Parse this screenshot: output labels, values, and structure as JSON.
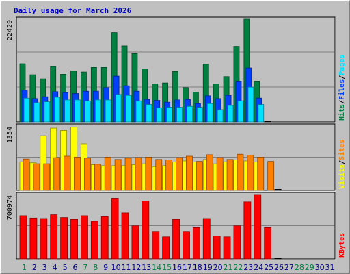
{
  "chart_data": {
    "type": "bar",
    "title": "Daily usage for March 2026",
    "days": [
      "1",
      "2",
      "3",
      "4",
      "5",
      "6",
      "7",
      "8",
      "9",
      "10",
      "11",
      "12",
      "13",
      "14",
      "15",
      "16",
      "17",
      "18",
      "19",
      "20",
      "21",
      "22",
      "23",
      "24",
      "25",
      "26",
      "27",
      "28",
      "29",
      "30",
      "31"
    ],
    "weekend_days": [
      "1",
      "7",
      "8",
      "14",
      "15",
      "21",
      "22",
      "28",
      "29"
    ],
    "colors": {
      "background": "#c0c0c0",
      "hits": "#008040",
      "files": "#0040ff",
      "pages": "#00e0ff",
      "visits": "#ffff00",
      "sites": "#ff8000",
      "kbytes": "#ff0000",
      "title": "#0000cc",
      "weekday_label": "#008040",
      "weekend_label": "#008040",
      "day_label": "#000080"
    },
    "panels": [
      {
        "id": "hits-panel",
        "ymax_label": "22429",
        "ymax": 22429,
        "legend": [
          {
            "text": "Hits",
            "color": "#008040"
          },
          {
            "text": "/",
            "color": "#000000"
          },
          {
            "text": "Files",
            "color": "#0040ff"
          },
          {
            "text": "/",
            "color": "#000000"
          },
          {
            "text": "Pages",
            "color": "#00e0ff"
          }
        ],
        "series": [
          {
            "name": "Hits",
            "color": "#008040",
            "values": [
              12700,
              10300,
              9400,
              12100,
              10400,
              11100,
              10900,
              11900,
              11900,
              19500,
              16600,
              14900,
              11600,
              8300,
              8500,
              11000,
              7500,
              6500,
              12600,
              8300,
              9900,
              16500,
              22429,
              8900,
              0,
              0,
              0,
              0,
              0,
              0,
              0
            ]
          },
          {
            "name": "Files",
            "color": "#0040ff",
            "values": [
              6900,
              5100,
              5500,
              6600,
              6400,
              6200,
              6700,
              6700,
              7500,
              10000,
              7900,
              6700,
              4900,
              4700,
              4300,
              4800,
              4900,
              4000,
              5700,
              5100,
              5800,
              8900,
              11800,
              5200,
              0,
              0,
              0,
              0,
              0,
              0,
              0
            ]
          },
          {
            "name": "Pages",
            "color": "#00e0ff",
            "values": [
              5200,
              4200,
              4400,
              5400,
              4800,
              4800,
              4600,
              4800,
              4800,
              6000,
              5800,
              4600,
              3800,
              3100,
              3200,
              3200,
              3400,
              3200,
              4000,
              2700,
              3600,
              4600,
              7600,
              3800,
              0,
              0,
              0,
              0,
              0,
              0,
              0
            ]
          }
        ]
      },
      {
        "id": "visits-panel",
        "ymax_label": "1354",
        "ymax": 1354,
        "legend": [
          {
            "text": "Visits",
            "color": "#ffff00"
          },
          {
            "text": "/",
            "color": "#000000"
          },
          {
            "text": "Sites",
            "color": "#ff8000"
          }
        ],
        "series": [
          {
            "name": "Visits",
            "color": "#ffff00",
            "values": [
              600,
              580,
              1150,
              1310,
              1260,
              1330,
              980,
              540,
              520,
              520,
              520,
              540,
              560,
              500,
              520,
              600,
              620,
              600,
              650,
              560,
              600,
              640,
              620,
              600,
              0,
              0,
              0,
              0,
              0,
              0,
              0
            ]
          },
          {
            "name": "Sites",
            "color": "#ff8000",
            "values": [
              660,
              560,
              560,
              690,
              720,
              700,
              680,
              550,
              700,
              650,
              680,
              690,
              700,
              650,
              640,
              690,
              720,
              610,
              750,
              690,
              650,
              760,
              740,
              700,
              610,
              0,
              0,
              0,
              0,
              0,
              0
            ]
          }
        ]
      },
      {
        "id": "kbytes-panel",
        "ymax_label": "700974",
        "ymax": 700974,
        "legend": [
          {
            "text": "KBytes",
            "color": "#ff0000"
          }
        ],
        "series": [
          {
            "name": "KBytes",
            "color": "#ff0000",
            "values": [
              470000,
              445000,
              440000,
              480000,
              450000,
              430000,
              470000,
              410000,
              460000,
              660000,
              500000,
              360000,
              630000,
              300000,
              240000,
              430000,
              300000,
              340000,
              440000,
              250000,
              240000,
              360000,
              620000,
              700974,
              340000,
              0,
              0,
              0,
              0,
              0,
              0
            ]
          }
        ]
      }
    ]
  }
}
